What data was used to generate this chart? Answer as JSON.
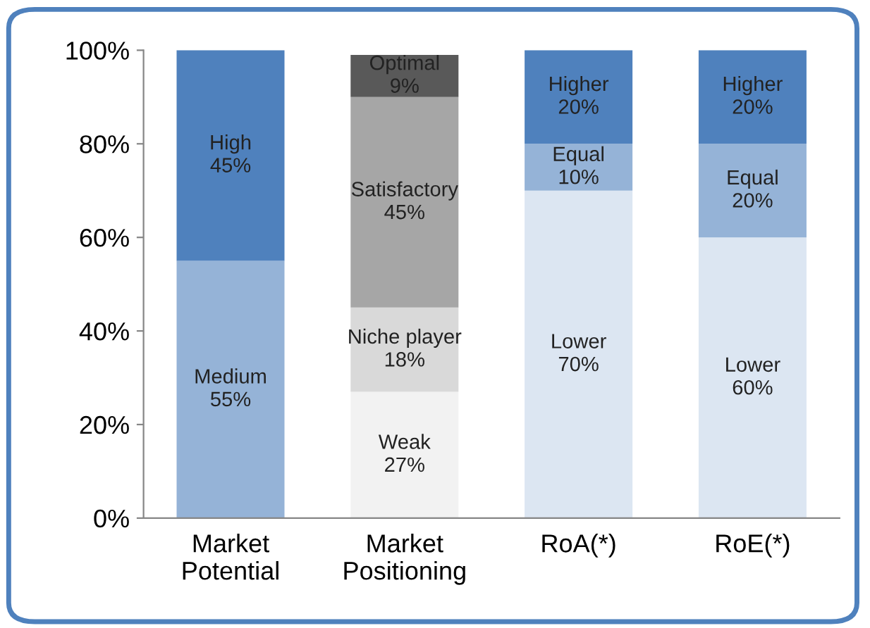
{
  "chart_data": {
    "type": "bar",
    "stacked": true,
    "categories": [
      "Market\nPotential",
      "Market\nPositioning",
      "RoA(*)",
      "RoE(*)"
    ],
    "series": [
      {
        "colors": [
          "#95b3d7",
          "#f2f2f2",
          "#dce6f2",
          "#dce6f2"
        ],
        "values": [
          55,
          27,
          70,
          60
        ],
        "value_labels": [
          "Medium\n55%",
          "Weak\n27%",
          "Lower\n70%",
          "Lower\n60%"
        ]
      },
      {
        "colors": [
          "#4f81bd",
          "#d9d9d9",
          "#95b3d7",
          "#95b3d7"
        ],
        "values": [
          45,
          18,
          10,
          20
        ],
        "value_labels": [
          "High\n45%",
          "Niche player\n18%",
          "Equal\n10%",
          "Equal\n20%"
        ]
      },
      {
        "colors": [
          null,
          "#a6a6a6",
          "#4f81bd",
          "#4f81bd"
        ],
        "values": [
          null,
          45,
          20,
          20
        ],
        "value_labels": [
          null,
          "Satisfactory\n45%",
          "Higher\n20%",
          "Higher\n20%"
        ]
      },
      {
        "colors": [
          null,
          "#595959",
          null,
          null
        ],
        "values": [
          null,
          9,
          null,
          null
        ],
        "value_labels": [
          null,
          "Optimal\n9%",
          null,
          null
        ]
      }
    ],
    "ylim": [
      0,
      100
    ],
    "yticks": [
      {
        "value": 0,
        "label": "0%"
      },
      {
        "value": 20,
        "label": "20%"
      },
      {
        "value": 40,
        "label": "40%"
      },
      {
        "value": 60,
        "label": "60%"
      },
      {
        "value": 80,
        "label": "80%"
      },
      {
        "value": 100,
        "label": "100%"
      }
    ],
    "grid": false
  }
}
